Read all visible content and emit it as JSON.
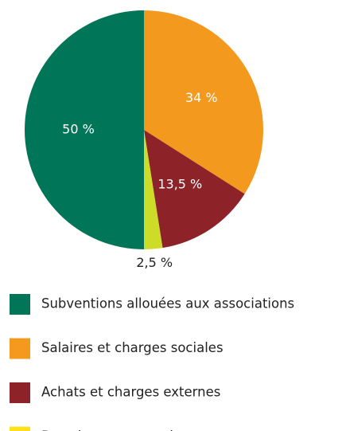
{
  "chart_data": {
    "type": "pie",
    "categories": [
      "Subventions allouées aux associations",
      "Salaires et charges sociales",
      "Achats et charges externes",
      "Dotation aux amortissements"
    ],
    "values": [
      50,
      34,
      13.5,
      2.5
    ],
    "value_labels": [
      "50 %",
      "34 %",
      "13,5 %",
      "2,5 %"
    ],
    "colors": [
      "#007558",
      "#f39a1e",
      "#8d2328",
      "#cddc29"
    ],
    "legend_colors": [
      "#007558",
      "#f39a1e",
      "#8d2328",
      "#fde21b"
    ],
    "slice_order": [
      1,
      2,
      3,
      0
    ]
  }
}
